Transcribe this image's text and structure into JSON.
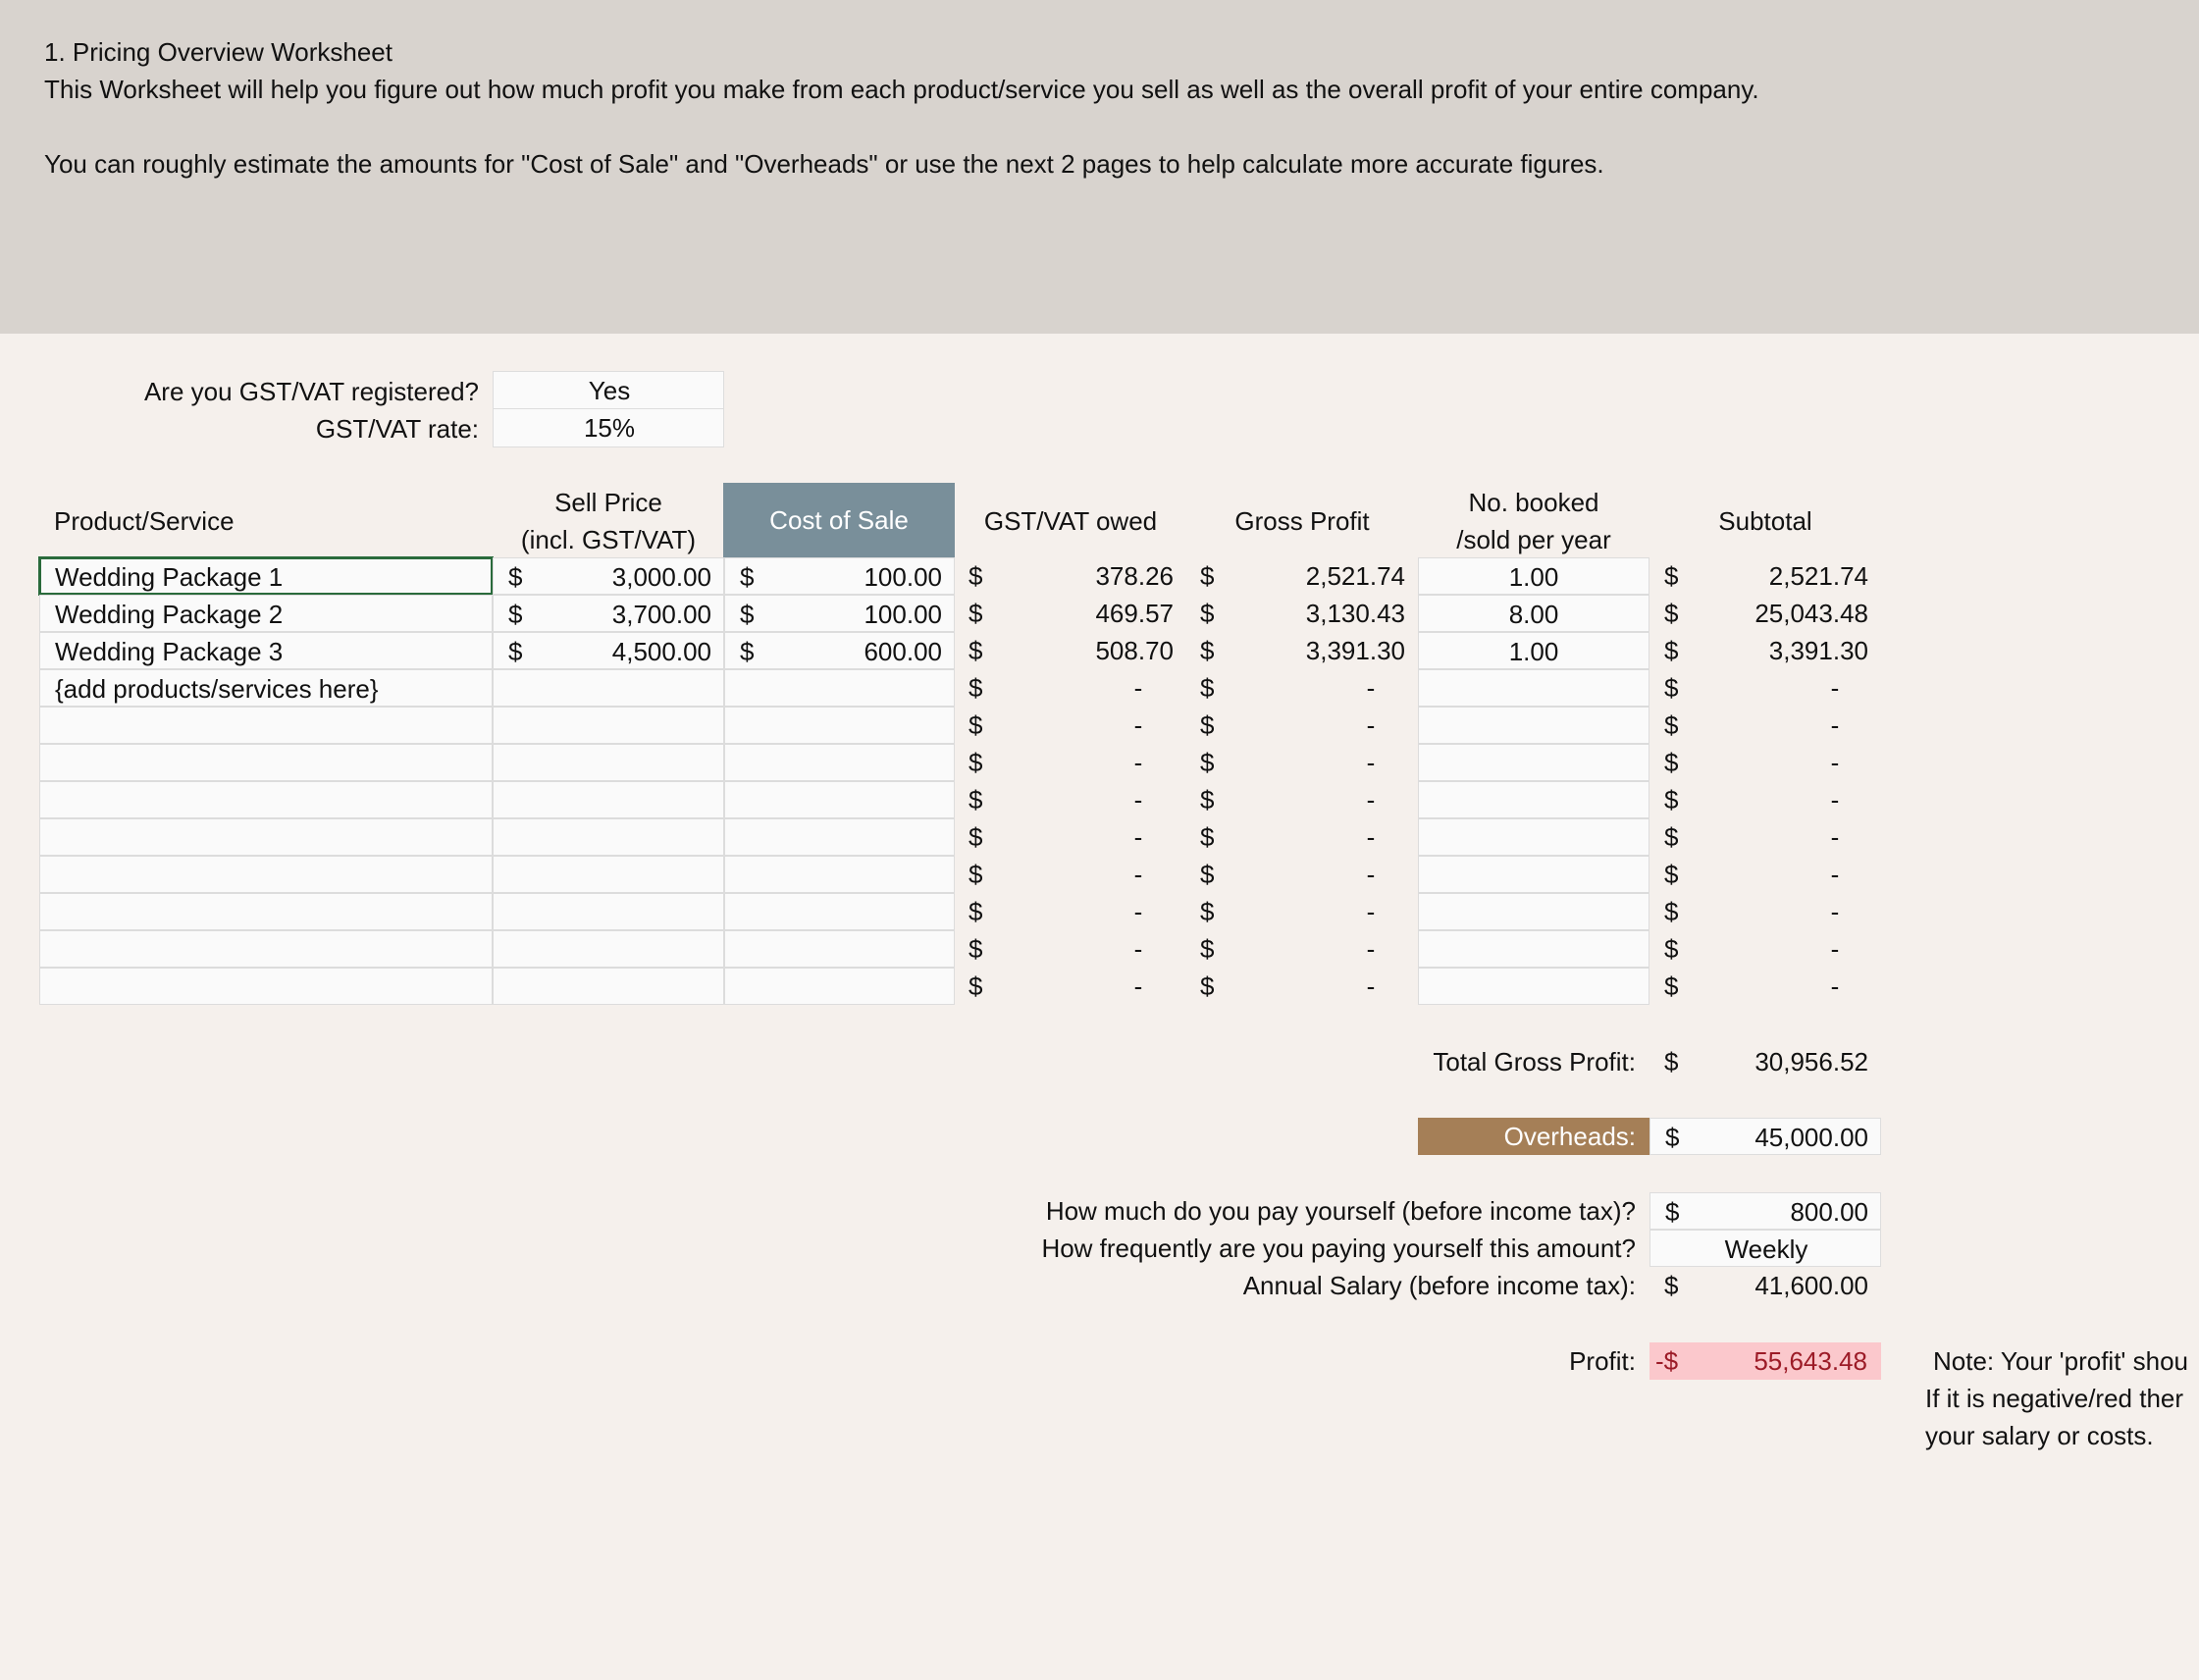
{
  "header": {
    "title": "1. Pricing Overview Worksheet",
    "description": "This Worksheet will help you figure out how much profit you make from each product/service you sell as well as the overall profit of your entire company.",
    "note": "You can roughly estimate the amounts for \"Cost of Sale\" and \"Overheads\" or use the next 2 pages to help calculate more accurate figures."
  },
  "gst": {
    "registered_label": "Are you GST/VAT registered?",
    "registered_value": "Yes",
    "rate_label": "GST/VAT rate:",
    "rate_value": "15%"
  },
  "table": {
    "headers": {
      "product": "Product/Service",
      "sell_price_1": "Sell Price",
      "sell_price_2": "(incl. GST/VAT)",
      "cost_of_sale": "Cost of Sale",
      "gst_owed": "GST/VAT owed",
      "gross_profit": "Gross Profit",
      "booked_1": "No. booked",
      "booked_2": "/sold per year",
      "subtotal": "Subtotal"
    },
    "currency": "$",
    "dash": "-",
    "rows": [
      {
        "product": "Wedding Package 1",
        "sell": "3,000.00",
        "cost": "100.00",
        "gst": "378.26",
        "gross": "2,521.74",
        "booked": "1.00",
        "subtotal": "2,521.74"
      },
      {
        "product": "Wedding Package 2",
        "sell": "3,700.00",
        "cost": "100.00",
        "gst": "469.57",
        "gross": "3,130.43",
        "booked": "8.00",
        "subtotal": "25,043.48"
      },
      {
        "product": "Wedding Package 3",
        "sell": "4,500.00",
        "cost": "600.00",
        "gst": "508.70",
        "gross": "3,391.30",
        "booked": "1.00",
        "subtotal": "3,391.30"
      },
      {
        "product": "{add products/services here}",
        "sell": "",
        "cost": "",
        "gst": "-",
        "gross": "-",
        "booked": "",
        "subtotal": "-"
      },
      {
        "product": "",
        "sell": "",
        "cost": "",
        "gst": "-",
        "gross": "-",
        "booked": "",
        "subtotal": "-"
      },
      {
        "product": "",
        "sell": "",
        "cost": "",
        "gst": "-",
        "gross": "-",
        "booked": "",
        "subtotal": "-"
      },
      {
        "product": "",
        "sell": "",
        "cost": "",
        "gst": "-",
        "gross": "-",
        "booked": "",
        "subtotal": "-"
      },
      {
        "product": "",
        "sell": "",
        "cost": "",
        "gst": "-",
        "gross": "-",
        "booked": "",
        "subtotal": "-"
      },
      {
        "product": "",
        "sell": "",
        "cost": "",
        "gst": "-",
        "gross": "-",
        "booked": "",
        "subtotal": "-"
      },
      {
        "product": "",
        "sell": "",
        "cost": "",
        "gst": "-",
        "gross": "-",
        "booked": "",
        "subtotal": "-"
      },
      {
        "product": "",
        "sell": "",
        "cost": "",
        "gst": "-",
        "gross": "-",
        "booked": "",
        "subtotal": "-"
      },
      {
        "product": "",
        "sell": "",
        "cost": "",
        "gst": "-",
        "gross": "-",
        "booked": "",
        "subtotal": "-"
      }
    ]
  },
  "totals": {
    "gross_profit_label": "Total Gross Profit:",
    "gross_profit_value": "30,956.52",
    "overheads_label": "Overheads:",
    "overheads_value": "45,000.00",
    "pay_label": "How much do you pay yourself (before income tax)?",
    "pay_value": "800.00",
    "freq_label": "How frequently are you paying yourself this amount?",
    "freq_value": "Weekly",
    "salary_label": "Annual Salary (before income tax):",
    "salary_value": "41,600.00",
    "profit_label": "Profit:",
    "profit_currency": "-$",
    "profit_value": "55,643.48"
  },
  "note": {
    "line1": "Note: Your 'profit' shou",
    "line2": "If it is negative/red ther",
    "line3": "your salary or costs."
  },
  "colors": {
    "header_bg": "#d8d3ce",
    "page_bg": "#f5f0ec",
    "cost_header": "#798f9a",
    "overheads": "#a57f57",
    "profit_bg": "#fbc8cc",
    "profit_text": "#9c1b27",
    "selection": "#2a6b3c"
  }
}
